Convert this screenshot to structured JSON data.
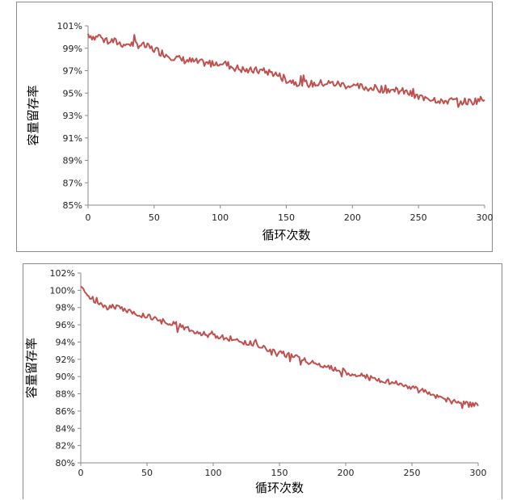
{
  "chart_data": [
    {
      "type": "line",
      "xlabel": "循环次数",
      "ylabel": "容量留存率",
      "xlim": [
        0,
        300
      ],
      "ylim": [
        85,
        101
      ],
      "x_ticks": [
        "0",
        "50",
        "100",
        "150",
        "200",
        "250",
        "300"
      ],
      "y_ticks": [
        "85%",
        "87%",
        "89%",
        "91%",
        "93%",
        "95%",
        "97%",
        "99%",
        "101%"
      ],
      "grid": false,
      "legend": "none",
      "series": [
        {
          "color": "#c0504d",
          "x": [
            0,
            5,
            10,
            15,
            20,
            25,
            30,
            40,
            50,
            60,
            70,
            80,
            90,
            100,
            110,
            120,
            130,
            140,
            150,
            160,
            170,
            180,
            190,
            200,
            210,
            220,
            230,
            240,
            250,
            255,
            260,
            270,
            280,
            290,
            295,
            300
          ],
          "y": [
            100.3,
            99.9,
            100.2,
            99.7,
            99.6,
            99.4,
            99.4,
            99.3,
            98.9,
            98.4,
            98.0,
            97.8,
            97.6,
            97.8,
            97.3,
            97.0,
            97.0,
            96.8,
            96.2,
            95.9,
            95.8,
            95.9,
            95.8,
            95.6,
            95.5,
            95.4,
            95.3,
            95.1,
            94.6,
            94.7,
            94.5,
            94.3,
            94.3,
            94.2,
            94.4,
            94.4
          ]
        }
      ]
    },
    {
      "type": "line",
      "xlabel": "循环次数",
      "ylabel": "容量留存率",
      "xlim": [
        0,
        300
      ],
      "ylim": [
        80,
        102
      ],
      "x_ticks": [
        "0",
        "50",
        "100",
        "150",
        "200",
        "250",
        "300"
      ],
      "y_ticks": [
        "80%",
        "82%",
        "84%",
        "86%",
        "88%",
        "90%",
        "92%",
        "94%",
        "96%",
        "98%",
        "100%",
        "102%"
      ],
      "grid": false,
      "legend": "none",
      "series": [
        {
          "color": "#c0504d",
          "x": [
            0,
            5,
            10,
            15,
            20,
            25,
            30,
            40,
            50,
            60,
            70,
            80,
            90,
            100,
            110,
            120,
            130,
            140,
            150,
            160,
            170,
            180,
            190,
            200,
            210,
            220,
            230,
            240,
            250,
            260,
            270,
            280,
            290,
            300
          ],
          "y": [
            100.3,
            99.5,
            98.8,
            98.5,
            98.0,
            98.1,
            97.9,
            97.5,
            97.0,
            96.6,
            96.1,
            95.6,
            95.1,
            94.9,
            94.5,
            94.1,
            93.8,
            93.2,
            92.8,
            92.3,
            91.8,
            91.4,
            90.9,
            90.6,
            90.1,
            89.8,
            89.5,
            89.1,
            88.7,
            88.2,
            87.6,
            87.2,
            86.9,
            86.6
          ]
        }
      ]
    }
  ]
}
